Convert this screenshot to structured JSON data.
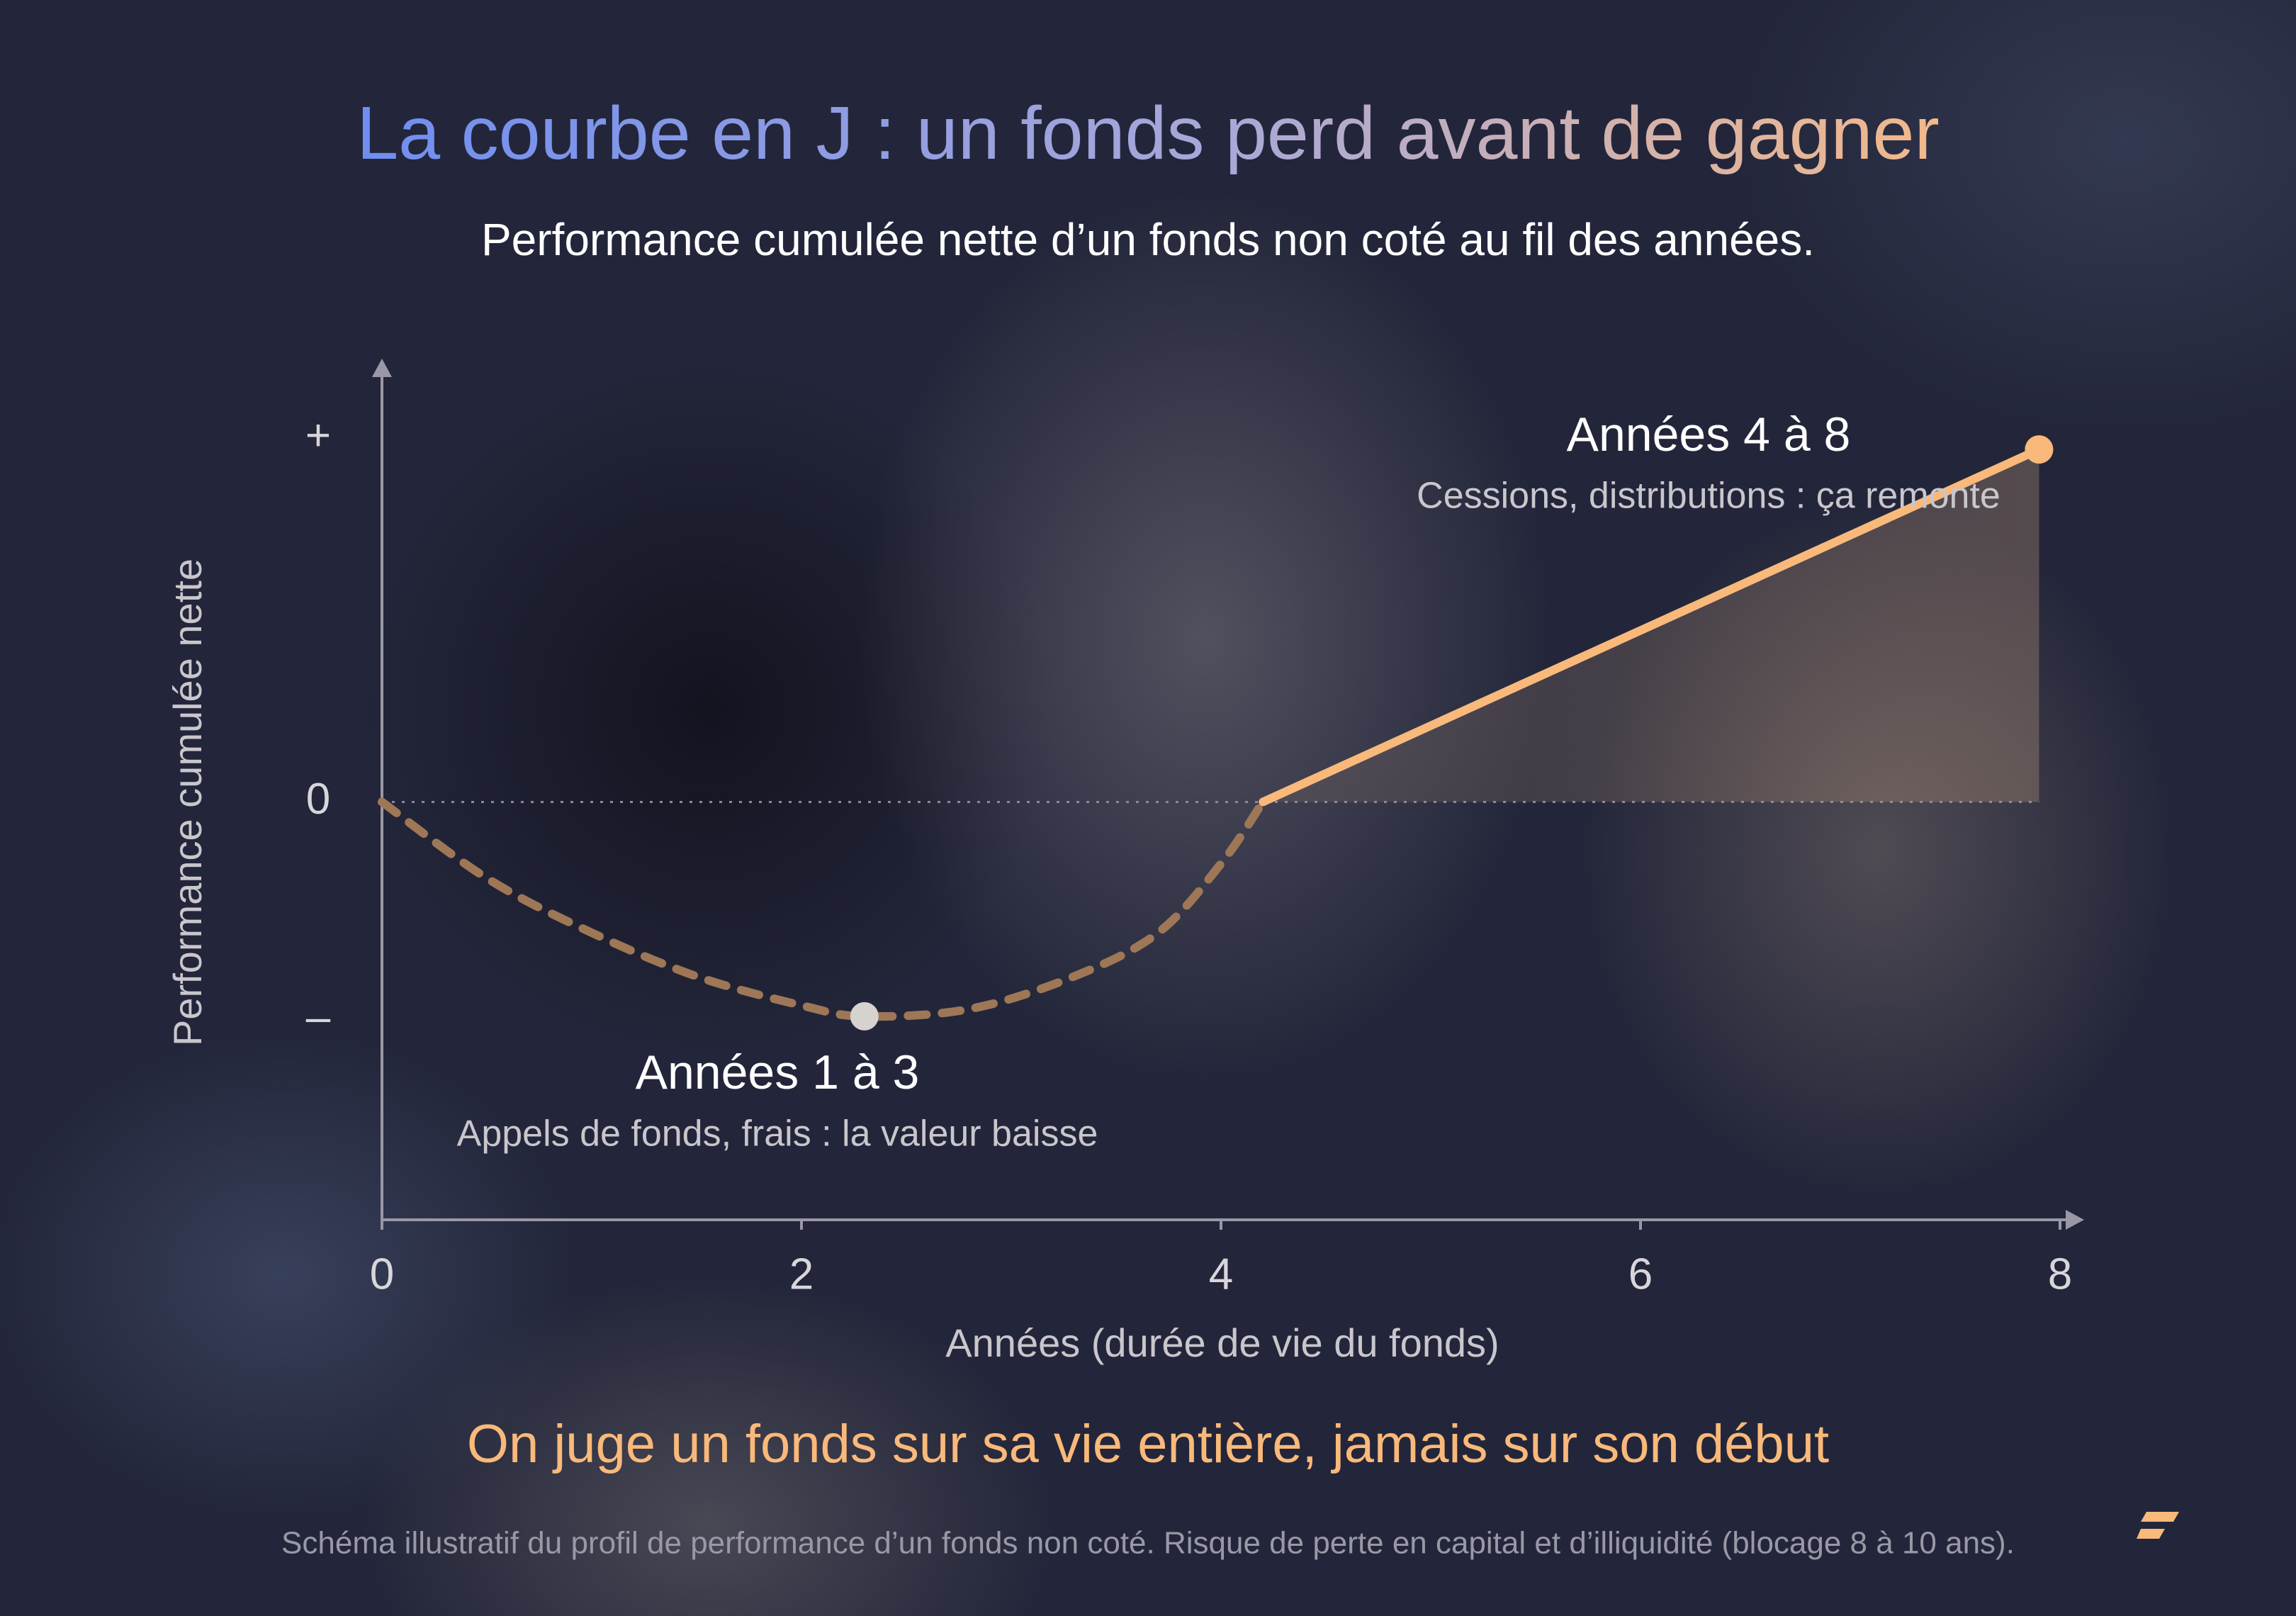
{
  "chart_data": {
    "type": "line",
    "title": "La courbe en J : un fonds perd avant de gagner",
    "subtitle": "Performance cumulée nette d’un fonds non coté au fil des années.",
    "x_label": "Années (durée de vie du fonds)",
    "y_label": "Performance cumulée nette",
    "xlim": [
      0,
      8
    ],
    "xticks": [
      0,
      2,
      4,
      6,
      8
    ],
    "ylim": [
      -11.5,
      12.2
    ],
    "yticks": [
      {
        "value": 10,
        "label": "+"
      },
      0,
      {
        "value": -6,
        "label": "–"
      }
    ],
    "zero_line": true,
    "series": [
      {
        "color": "#9e7757",
        "style": "dashed",
        "x": [
          0,
          0.5,
          1,
          1.5,
          2,
          2.3,
          2.8,
          3.3,
          3.7,
          4,
          4.2
        ],
        "values": [
          0,
          -2.1,
          -3.6,
          -4.8,
          -5.6,
          -5.9,
          -5.7,
          -4.8,
          -3.6,
          -1.7,
          0
        ]
      },
      {
        "color": "#f9b97a",
        "style": "solid",
        "fill": true,
        "x": [
          4.2,
          7.9
        ],
        "values": [
          0,
          9.7
        ]
      }
    ],
    "annotations": [
      {
        "x": 2.3,
        "y": -5.9,
        "color": "#d6d2d0",
        "title": "Années 1 à 3",
        "text": "Appels de fonds, frais : la valeur baisse"
      },
      {
        "x": 7.9,
        "y": 9.7,
        "color": "#f9b97a",
        "title": "Années 4 à 8",
        "text": "Cessions, distributions : ça remonte"
      }
    ],
    "takeaway": "On juge un fonds sur sa vie entière, jamais sur son début",
    "disclaimer": "Schéma illustratif du profil de performance d’un fonds non coté. Risque de perte en capital et d’illiquidité (blocage 8 à 10 ans)."
  }
}
